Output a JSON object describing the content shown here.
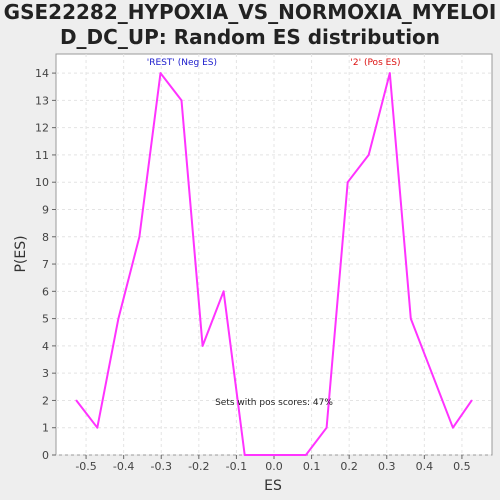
{
  "chart_data": {
    "type": "line",
    "title_line1": "GSE22282_HYPOXIA_VS_NORMOXIA_MYELOI",
    "title_line2": "D_DC_UP: Random ES distribution",
    "xlabel": "ES",
    "ylabel": "P(ES)",
    "xlim": [
      -0.58,
      0.58
    ],
    "ylim": [
      0,
      14.7
    ],
    "xticks": [
      -0.5,
      -0.4,
      -0.3,
      -0.2,
      -0.1,
      0.0,
      0.1,
      0.2,
      0.3,
      0.4,
      0.5
    ],
    "xtick_labels": [
      "-0.5",
      "-0.4",
      "-0.3",
      "-0.2",
      "-0.1",
      "0.0",
      "0.1",
      "0.2",
      "0.3",
      "0.4",
      "0.5"
    ],
    "yticks": [
      0,
      1,
      2,
      3,
      4,
      5,
      6,
      7,
      8,
      9,
      10,
      11,
      12,
      13,
      14
    ],
    "ytick_labels": [
      "0",
      "1",
      "2",
      "3",
      "4",
      "5",
      "6",
      "7",
      "8",
      "9",
      "10",
      "11",
      "12",
      "13",
      "14"
    ],
    "grid": true,
    "series": [
      {
        "color": "#ff33ff",
        "x": [
          -0.526,
          -0.47,
          -0.414,
          -0.358,
          -0.302,
          -0.246,
          -0.19,
          -0.134,
          -0.078,
          0.0,
          0.085,
          0.14,
          0.196,
          0.252,
          0.308,
          0.364,
          0.42,
          0.476,
          0.526
        ],
        "y": [
          2,
          1,
          5,
          8,
          14,
          13,
          4,
          6,
          0,
          0,
          0,
          1,
          10,
          11,
          14,
          5,
          3,
          1,
          2
        ]
      }
    ],
    "annotations": [
      {
        "id": "neg",
        "text": "'REST' (Neg ES)",
        "x": -0.245,
        "y": 14.3,
        "color": "#1a1acc"
      },
      {
        "id": "pos",
        "text": "'2' (Pos ES)",
        "x": 0.27,
        "y": 14.3,
        "color": "#dd1111"
      },
      {
        "id": "pct",
        "text": "Sets with pos scores: 47%",
        "x": 0.0,
        "y": 1.83,
        "color": "#222222"
      }
    ]
  }
}
